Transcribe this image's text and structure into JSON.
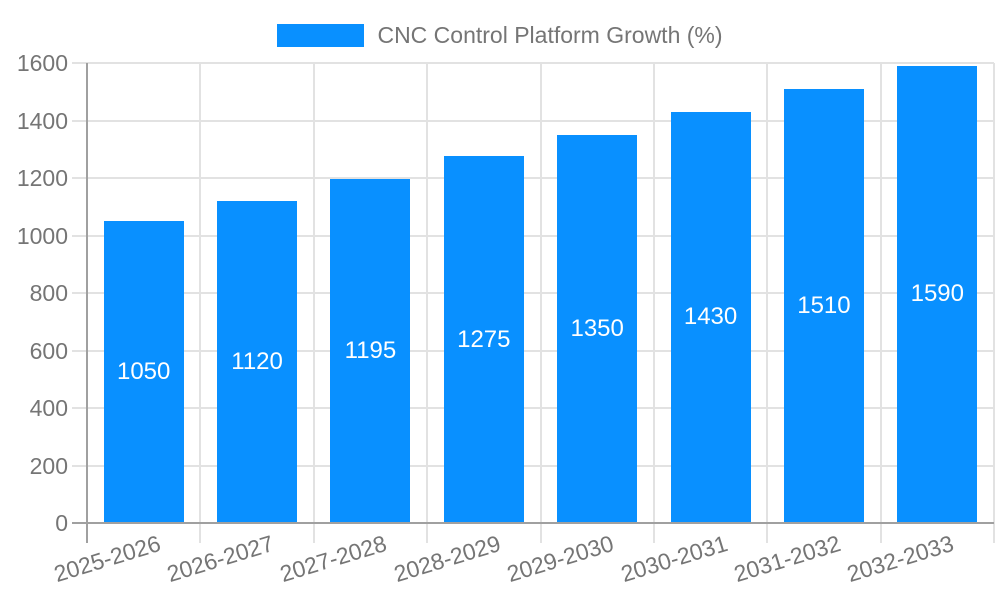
{
  "legend": {
    "label": "CNC Control Platform Growth (%)",
    "swatch_color": "#0990ff"
  },
  "chart_data": {
    "type": "bar",
    "title": "CNC Control Platform Growth (%)",
    "categories": [
      "2025-2026",
      "2026-2027",
      "2027-2028",
      "2028-2029",
      "2029-2030",
      "2030-2031",
      "2031-2032",
      "2032-2033"
    ],
    "values": [
      1050,
      1120,
      1195,
      1275,
      1350,
      1430,
      1510,
      1590
    ],
    "value_labels": [
      "1050",
      "1120",
      "1195",
      "1275",
      "1350",
      "1430",
      "1510",
      "1590"
    ],
    "xlabel": "",
    "ylabel": "",
    "ylim": [
      0,
      1600
    ],
    "yticks": [
      0,
      200,
      400,
      600,
      800,
      1000,
      1200,
      1400,
      1600
    ],
    "grid": true,
    "legend_position": "top",
    "x_label_rotation_deg": -17,
    "colors": {
      "bar": "#0990ff",
      "gridline": "#e2e2e2",
      "axis_line": "#a0a0a0",
      "axis_label": "#757575",
      "value_label": "#ffffff",
      "background": "#ffffff"
    }
  }
}
